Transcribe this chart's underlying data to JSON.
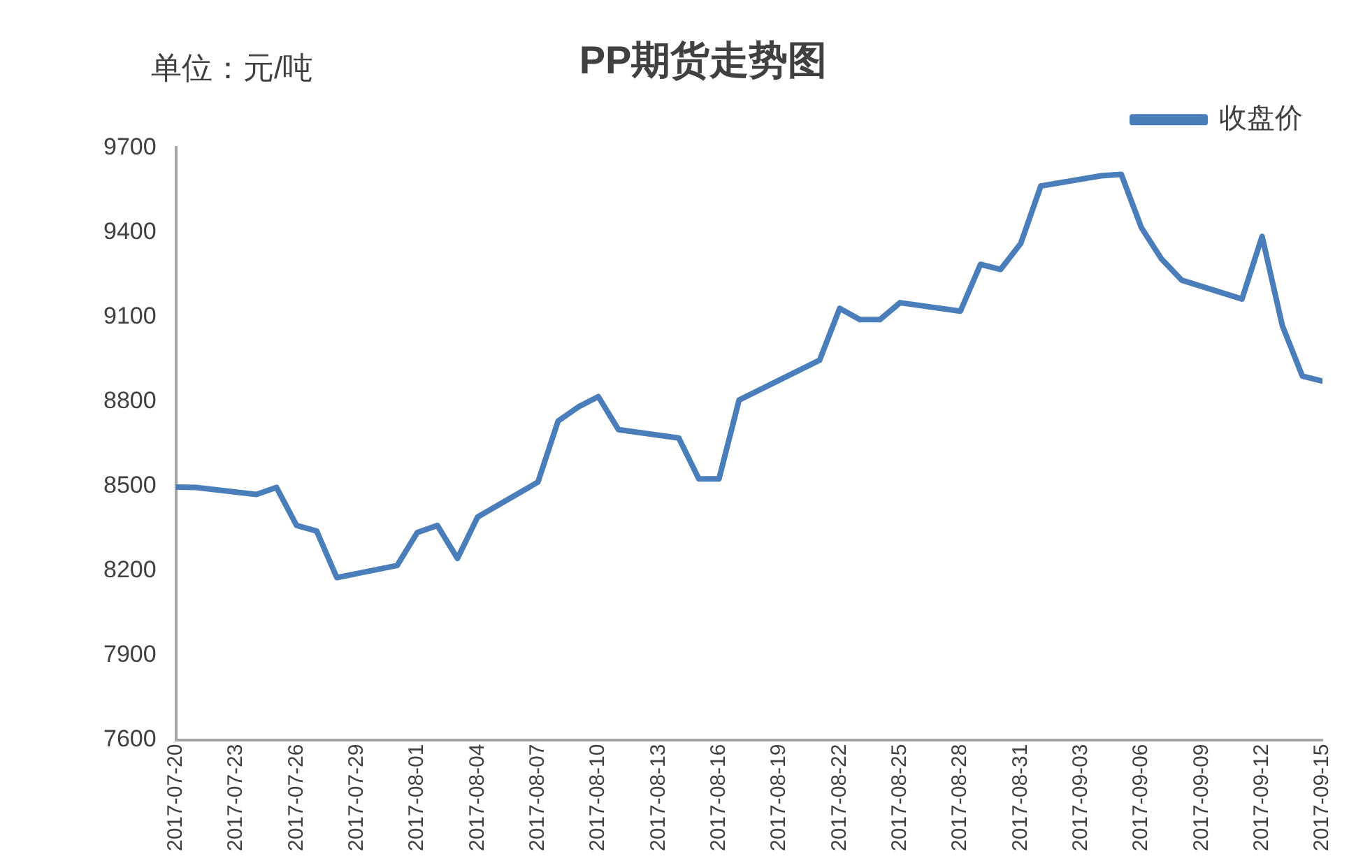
{
  "chart_data": {
    "type": "line",
    "title": "PP期货走势图",
    "annotations": [
      "单位：元/吨"
    ],
    "x": [
      "2017-07-20",
      "2017-07-21",
      "2017-07-24",
      "2017-07-25",
      "2017-07-26",
      "2017-07-27",
      "2017-07-28",
      "2017-07-31",
      "2017-08-01",
      "2017-08-02",
      "2017-08-03",
      "2017-08-04",
      "2017-08-07",
      "2017-08-08",
      "2017-08-09",
      "2017-08-10",
      "2017-08-11",
      "2017-08-14",
      "2017-08-15",
      "2017-08-16",
      "2017-08-17",
      "2017-08-18",
      "2017-08-21",
      "2017-08-22",
      "2017-08-23",
      "2017-08-24",
      "2017-08-25",
      "2017-08-28",
      "2017-08-29",
      "2017-08-30",
      "2017-08-31",
      "2017-09-01",
      "2017-09-04",
      "2017-09-05",
      "2017-09-06",
      "2017-09-07",
      "2017-09-08",
      "2017-09-11",
      "2017-09-12",
      "2017-09-13",
      "2017-09-14",
      "2017-09-15"
    ],
    "series": [
      {
        "name": "收盘价",
        "color": "#4a7ebb",
        "values": [
          8496,
          8495,
          8470,
          8495,
          8360,
          8340,
          8175,
          8218,
          8335,
          8360,
          8243,
          8390,
          8514,
          8730,
          8780,
          8817,
          8700,
          8670,
          8525,
          8525,
          8805,
          8840,
          8946,
          9130,
          9090,
          9090,
          9150,
          9120,
          9286,
          9268,
          9360,
          9564,
          9600,
          9605,
          9416,
          9305,
          9230,
          9163,
          9385,
          9070,
          8890,
          8872
        ]
      }
    ],
    "xlim": [
      "2017-07-20",
      "2017-09-15"
    ],
    "xticks": [
      "2017-07-20",
      "2017-07-23",
      "2017-07-26",
      "2017-07-29",
      "2017-08-01",
      "2017-08-04",
      "2017-08-07",
      "2017-08-10",
      "2017-08-13",
      "2017-08-16",
      "2017-08-19",
      "2017-08-22",
      "2017-08-25",
      "2017-08-28",
      "2017-08-31",
      "2017-09-03",
      "2017-09-06",
      "2017-09-09",
      "2017-09-12",
      "2017-09-15"
    ],
    "ylim": [
      7600,
      9700
    ],
    "yticks": [
      7600,
      7900,
      8200,
      8500,
      8800,
      9100,
      9400,
      9700
    ],
    "grid": false,
    "legend": "top right",
    "marker": "none",
    "line_style": "solid"
  }
}
